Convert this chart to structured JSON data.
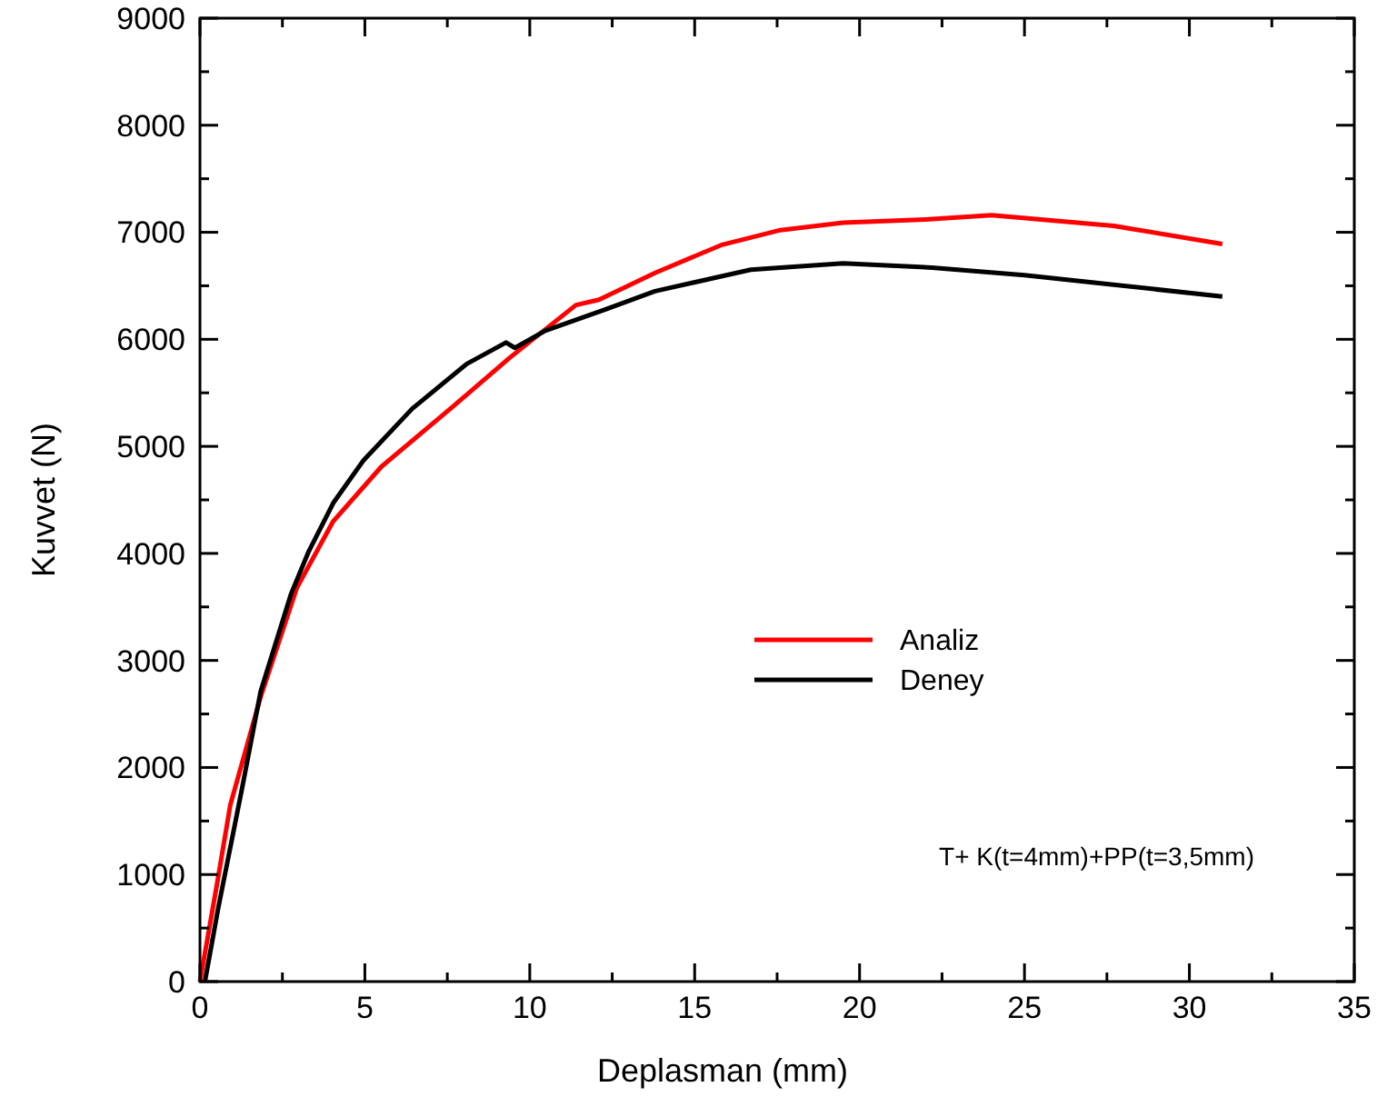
{
  "chart_data": {
    "type": "line",
    "xlabel": "Deplasman (mm)",
    "ylabel": "Kuvvet (N)",
    "xlim": [
      0,
      35
    ],
    "ylim": [
      0,
      9000
    ],
    "xticks": [
      0,
      {
        "value": 2.5,
        "label": null
      },
      5,
      {
        "value": 7.5,
        "label": null
      },
      10,
      {
        "value": 12.5,
        "label": null
      },
      15,
      {
        "value": 17.5,
        "label": null
      },
      20,
      {
        "value": 22.5,
        "label": null
      },
      25,
      {
        "value": 27.5,
        "label": null
      },
      30,
      {
        "value": 32.5,
        "label": null
      },
      35
    ],
    "yticks": [
      0,
      {
        "value": 500,
        "label": null
      },
      1000,
      {
        "value": 1500,
        "label": null
      },
      2000,
      {
        "value": 2500,
        "label": null
      },
      3000,
      {
        "value": 3500,
        "label": null
      },
      4000,
      {
        "value": 4500,
        "label": null
      },
      5000,
      {
        "value": 5500,
        "label": null
      },
      6000,
      {
        "value": 6500,
        "label": null
      },
      7000,
      {
        "value": 7500,
        "label": null
      },
      8000,
      {
        "value": 8500,
        "label": null
      },
      9000
    ],
    "grid": false,
    "legend": "right",
    "line_style": "solid",
    "annotations": [
      "T+ K(t=4mm)+PP(t=3,5mm)"
    ],
    "series": [
      {
        "name": "Analiz",
        "color": "#ff0000",
        "x": [
          0,
          0.55,
          0.92,
          1.84,
          2.94,
          4.04,
          5.5,
          7.7,
          9.4,
          11.4,
          12.1,
          13.8,
          15.8,
          17.6,
          19.5,
          22,
          24,
          27.7,
          31
        ],
        "values": [
          0,
          970,
          1650,
          2660,
          3680,
          4300,
          4810,
          5380,
          5830,
          6320,
          6370,
          6620,
          6880,
          7020,
          7090,
          7120,
          7160,
          7060,
          6890
        ]
      },
      {
        "name": "Deney",
        "color": "#000000",
        "x": [
          0.15,
          0.55,
          1.28,
          1.84,
          2.76,
          3.3,
          4.04,
          4.96,
          6.43,
          8.09,
          9.28,
          9.55,
          10.47,
          12.3,
          13.8,
          16.7,
          19.5,
          22.2,
          25,
          27.7,
          31
        ],
        "values": [
          0,
          680,
          1810,
          2710,
          3620,
          4020,
          4470,
          4870,
          5350,
          5770,
          5970,
          5920,
          6080,
          6280,
          6450,
          6650,
          6710,
          6670,
          6600,
          6510,
          6400
        ]
      }
    ]
  }
}
